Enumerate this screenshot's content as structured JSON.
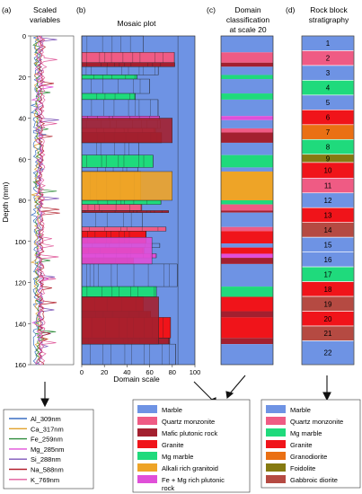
{
  "panels": {
    "a": {
      "letter": "(a)",
      "title_l1": "Scaled",
      "title_l2": "variables"
    },
    "b": {
      "letter": "(b)",
      "title": "Mosaic plot",
      "xlabel": "Domain scale"
    },
    "c": {
      "letter": "(c)",
      "title_l1": "Domain",
      "title_l2": "classification",
      "title_l3": "at scale 20"
    },
    "d": {
      "letter": "(d)",
      "title_l1": "Rock block",
      "title_l2": "stratigraphy"
    }
  },
  "depth_axis": {
    "label": "Depth (mm)",
    "min": 0,
    "max": 160,
    "ticks": [
      "0",
      "20",
      "40",
      "60",
      "80",
      "100",
      "120",
      "140",
      "160"
    ]
  },
  "domain_axis": {
    "min": 0,
    "max": 100,
    "ticks": [
      "0",
      "20",
      "40",
      "60",
      "80",
      "100"
    ]
  },
  "colors": {
    "marble": "#6e93e4",
    "quartz_monzonite": "#ef5b84",
    "mafic_plutonic": "#a3202f",
    "granite": "#f0141a",
    "mg_marble": "#1fda7c",
    "alkali_granitoid": "#eea427",
    "fe_mg_plutonic": "#e04fd8",
    "granodiorite": "#ea7014",
    "foidolite": "#857a11",
    "gabbroic_diorite": "#b54a42"
  },
  "legend_a": {
    "items": [
      {
        "label": "Al_309nm",
        "color": "#3a6fc4"
      },
      {
        "label": "Ca_317nm",
        "color": "#e0a12b"
      },
      {
        "label": "Fe_259nm",
        "color": "#2e8b3a"
      },
      {
        "label": "Mg_285nm",
        "color": "#e04fd8"
      },
      {
        "label": "Si_288nm",
        "color": "#7d55b8"
      },
      {
        "label": "Na_588nm",
        "color": "#b21f2c"
      },
      {
        "label": "K_769nm",
        "color": "#e05b9b"
      }
    ]
  },
  "legend_b": {
    "items": [
      {
        "label": "Marble",
        "color": "#6e93e4"
      },
      {
        "label": "Quartz monzonite",
        "color": "#ef5b84"
      },
      {
        "label": "Mafic plutonic rock",
        "color": "#a3202f"
      },
      {
        "label": "Granite",
        "color": "#f0141a"
      },
      {
        "label": "Mg marble",
        "color": "#1fda7c"
      },
      {
        "label": "Alkali rich granitoid",
        "color": "#eea427"
      },
      {
        "label": "Fe + Mg rich plutonic",
        "label2": "rock",
        "color": "#e04fd8"
      }
    ]
  },
  "legend_d": {
    "items": [
      {
        "label": "Marble",
        "color": "#6e93e4"
      },
      {
        "label": "Quartz monzonite",
        "color": "#ef5b84"
      },
      {
        "label": "Mg marble",
        "color": "#1fda7c"
      },
      {
        "label": "Granite",
        "color": "#f0141a"
      },
      {
        "label": "Granodiorite",
        "color": "#ea7014"
      },
      {
        "label": "Foidolite",
        "color": "#857a11"
      },
      {
        "label": "Gabbroic diorite",
        "color": "#b54a42"
      }
    ]
  },
  "domains_scale20": [
    {
      "from": 0,
      "to": 8,
      "rock": "marble"
    },
    {
      "from": 8,
      "to": 13,
      "rock": "quartz_monzonite"
    },
    {
      "from": 13,
      "to": 15,
      "rock": "mafic_plutonic"
    },
    {
      "from": 15,
      "to": 19,
      "rock": "marble"
    },
    {
      "from": 19,
      "to": 21,
      "rock": "mg_marble"
    },
    {
      "from": 21,
      "to": 28,
      "rock": "marble"
    },
    {
      "from": 28,
      "to": 31,
      "rock": "mg_marble"
    },
    {
      "from": 31,
      "to": 39,
      "rock": "marble"
    },
    {
      "from": 39,
      "to": 41,
      "rock": "fe_mg_plutonic"
    },
    {
      "from": 41,
      "to": 45,
      "rock": "marble"
    },
    {
      "from": 45,
      "to": 47,
      "rock": "quartz_monzonite"
    },
    {
      "from": 47,
      "to": 52,
      "rock": "mafic_plutonic"
    },
    {
      "from": 52,
      "to": 58,
      "rock": "marble"
    },
    {
      "from": 58,
      "to": 64,
      "rock": "mg_marble"
    },
    {
      "from": 64,
      "to": 66,
      "rock": "marble"
    },
    {
      "from": 66,
      "to": 80,
      "rock": "alkali_granitoid"
    },
    {
      "from": 80,
      "to": 82,
      "rock": "mg_marble"
    },
    {
      "from": 82,
      "to": 85,
      "rock": "quartz_monzonite"
    },
    {
      "from": 85,
      "to": 86,
      "rock": "mafic_plutonic"
    },
    {
      "from": 86,
      "to": 93,
      "rock": "marble"
    },
    {
      "from": 93,
      "to": 95,
      "rock": "quartz_monzonite"
    },
    {
      "from": 95,
      "to": 101,
      "rock": "granite"
    },
    {
      "from": 101,
      "to": 103,
      "rock": "marble"
    },
    {
      "from": 103,
      "to": 106,
      "rock": "granite"
    },
    {
      "from": 106,
      "to": 108,
      "rock": "fe_mg_plutonic"
    },
    {
      "from": 108,
      "to": 111,
      "rock": "mafic_plutonic"
    },
    {
      "from": 111,
      "to": 122,
      "rock": "marble"
    },
    {
      "from": 122,
      "to": 127,
      "rock": "mg_marble"
    },
    {
      "from": 127,
      "to": 134,
      "rock": "granite"
    },
    {
      "from": 134,
      "to": 137,
      "rock": "mafic_plutonic"
    },
    {
      "from": 137,
      "to": 147,
      "rock": "granite"
    },
    {
      "from": 147,
      "to": 150,
      "rock": "mafic_plutonic"
    },
    {
      "from": 150,
      "to": 160,
      "rock": "marble"
    }
  ],
  "strat_blocks": [
    {
      "label": "1",
      "from": 0,
      "to": 7.2,
      "rock": "marble"
    },
    {
      "label": "2",
      "from": 7.2,
      "to": 14.4,
      "rock": "quartz_monzonite"
    },
    {
      "label": "3",
      "from": 14.4,
      "to": 21.6,
      "rock": "marble"
    },
    {
      "label": "4",
      "from": 21.6,
      "to": 28.8,
      "rock": "mg_marble"
    },
    {
      "label": "5",
      "from": 28.8,
      "to": 36.0,
      "rock": "marble"
    },
    {
      "label": "6",
      "from": 36.0,
      "to": 43.2,
      "rock": "granite"
    },
    {
      "label": "7",
      "from": 43.2,
      "to": 50.4,
      "rock": "granodiorite"
    },
    {
      "label": "8",
      "from": 50.4,
      "to": 57.6,
      "rock": "mg_marble"
    },
    {
      "label": "9",
      "from": 57.6,
      "to": 61.6,
      "rock": "foidolite"
    },
    {
      "label": "10",
      "from": 61.6,
      "to": 69.2,
      "rock": "granite"
    },
    {
      "label": "11",
      "from": 69.2,
      "to": 76.4,
      "rock": "quartz_monzonite"
    },
    {
      "label": "12",
      "from": 76.4,
      "to": 83.6,
      "rock": "marble"
    },
    {
      "label": "13",
      "from": 83.6,
      "to": 90.8,
      "rock": "granite"
    },
    {
      "label": "14",
      "from": 90.8,
      "to": 98.0,
      "rock": "gabbroic_diorite"
    },
    {
      "label": "15",
      "from": 98.0,
      "to": 105.2,
      "rock": "marble"
    },
    {
      "label": "16",
      "from": 105.2,
      "to": 112.4,
      "rock": "marble"
    },
    {
      "label": "17",
      "from": 112.4,
      "to": 119.6,
      "rock": "mg_marble"
    },
    {
      "label": "18",
      "from": 119.6,
      "to": 126.8,
      "rock": "granite"
    },
    {
      "label": "19",
      "from": 126.8,
      "to": 134.0,
      "rock": "gabbroic_diorite"
    },
    {
      "label": "20",
      "from": 134.0,
      "to": 141.2,
      "rock": "granite"
    },
    {
      "label": "21",
      "from": 141.2,
      "to": 148.4,
      "rock": "gabbroic_diorite"
    },
    {
      "label": "22",
      "from": 148.4,
      "to": 160,
      "rock": "marble"
    }
  ]
}
